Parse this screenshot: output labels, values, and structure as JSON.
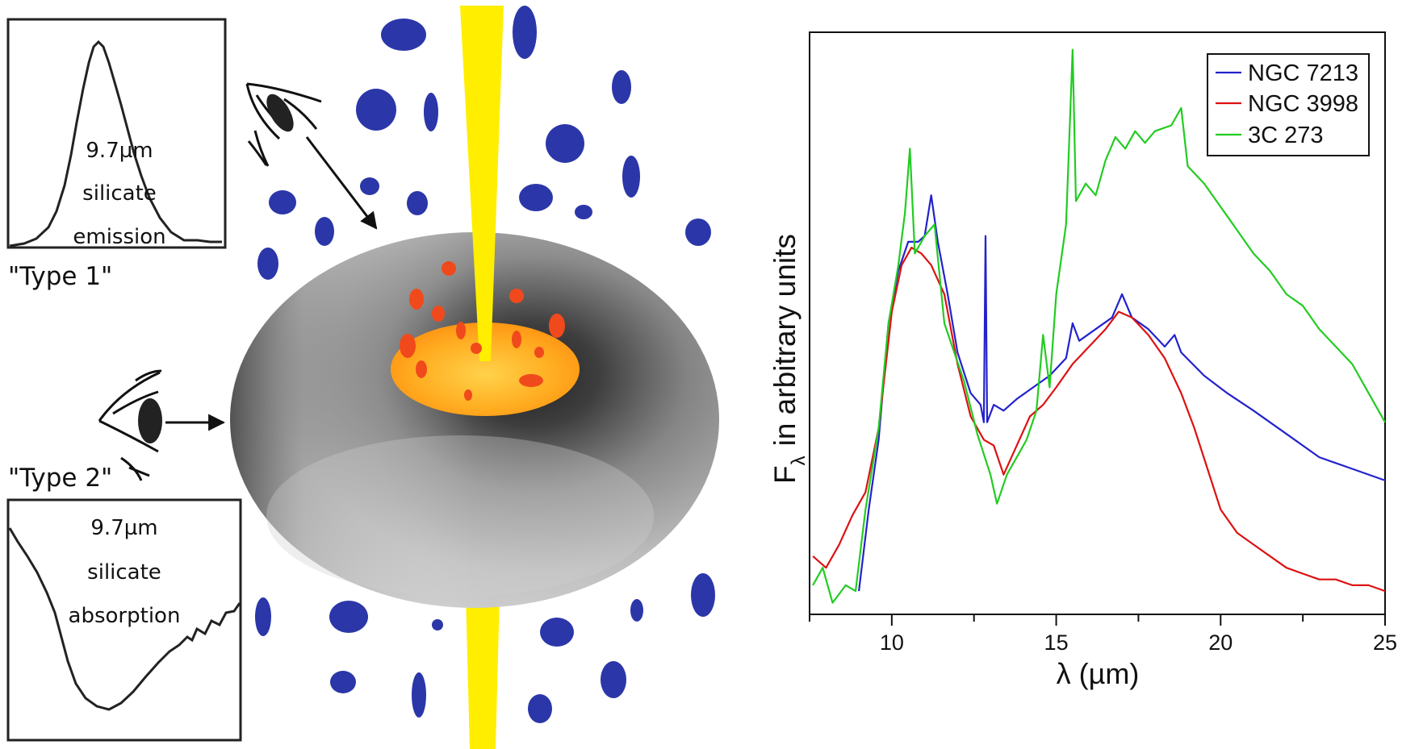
{
  "inset_type1": {
    "label_line1": "9.7µm",
    "label_line2": "silicate",
    "label_line3": "emission",
    "caption": "\"Type 1\""
  },
  "inset_type2": {
    "label_line1": "9.7µm",
    "label_line2": "silicate",
    "label_line3": "absorption",
    "caption": "\"Type 2\""
  },
  "colors": {
    "clouds": "#2b36a8",
    "jet": "#ffee00",
    "disk": "#ffa31a",
    "hot_clouds": "#f04a1c",
    "torus_dark": "#2c2c2c",
    "torus_light": "#d2d2d2"
  },
  "icons": [
    "eye-icon-top",
    "eye-icon-side",
    "arrow-icon"
  ],
  "chart_data": {
    "type": "line",
    "xlabel": "λ (µm)",
    "ylabel_main": "F",
    "ylabel_sub": "λ",
    "ylabel_rest": "in arbitrary units",
    "xlim": [
      7.5,
      25
    ],
    "ylim": [
      0,
      1
    ],
    "x_ticks": [
      10,
      15,
      20,
      25
    ],
    "x_tick_labels": [
      "10",
      "15",
      "20",
      "25"
    ],
    "legend_position": "top-right",
    "series": [
      {
        "name": "NGC 7213",
        "color": "#2222cc",
        "points": [
          [
            9.0,
            0.04
          ],
          [
            9.3,
            0.18
          ],
          [
            9.6,
            0.3
          ],
          [
            9.9,
            0.5
          ],
          [
            10.2,
            0.59
          ],
          [
            10.5,
            0.64
          ],
          [
            10.8,
            0.64
          ],
          [
            11.0,
            0.65
          ],
          [
            11.2,
            0.72
          ],
          [
            11.4,
            0.64
          ],
          [
            11.7,
            0.55
          ],
          [
            12.0,
            0.45
          ],
          [
            12.4,
            0.38
          ],
          [
            12.7,
            0.36
          ],
          [
            12.8,
            0.33
          ],
          [
            12.85,
            0.65
          ],
          [
            12.9,
            0.33
          ],
          [
            13.1,
            0.36
          ],
          [
            13.4,
            0.35
          ],
          [
            13.8,
            0.37
          ],
          [
            14.3,
            0.39
          ],
          [
            14.8,
            0.41
          ],
          [
            15.3,
            0.44
          ],
          [
            15.5,
            0.5
          ],
          [
            15.7,
            0.47
          ],
          [
            16.2,
            0.49
          ],
          [
            16.7,
            0.51
          ],
          [
            17.0,
            0.55
          ],
          [
            17.3,
            0.51
          ],
          [
            17.8,
            0.49
          ],
          [
            18.3,
            0.46
          ],
          [
            18.6,
            0.48
          ],
          [
            18.8,
            0.45
          ],
          [
            19.5,
            0.41
          ],
          [
            20.2,
            0.38
          ],
          [
            21.0,
            0.35
          ],
          [
            22.0,
            0.31
          ],
          [
            23.0,
            0.27
          ],
          [
            24.0,
            0.25
          ],
          [
            25.0,
            0.23
          ]
        ]
      },
      {
        "name": "NGC 3998",
        "color": "#dd1111",
        "points": [
          [
            7.6,
            0.1
          ],
          [
            8.0,
            0.08
          ],
          [
            8.4,
            0.12
          ],
          [
            8.8,
            0.17
          ],
          [
            9.2,
            0.21
          ],
          [
            9.6,
            0.32
          ],
          [
            10.0,
            0.52
          ],
          [
            10.3,
            0.6
          ],
          [
            10.6,
            0.63
          ],
          [
            10.9,
            0.62
          ],
          [
            11.2,
            0.6
          ],
          [
            11.6,
            0.55
          ],
          [
            12.0,
            0.43
          ],
          [
            12.4,
            0.34
          ],
          [
            12.8,
            0.3
          ],
          [
            13.1,
            0.29
          ],
          [
            13.4,
            0.24
          ],
          [
            13.8,
            0.29
          ],
          [
            14.2,
            0.34
          ],
          [
            14.6,
            0.36
          ],
          [
            15.0,
            0.39
          ],
          [
            15.5,
            0.43
          ],
          [
            16.0,
            0.46
          ],
          [
            16.5,
            0.49
          ],
          [
            16.9,
            0.52
          ],
          [
            17.3,
            0.51
          ],
          [
            17.8,
            0.48
          ],
          [
            18.3,
            0.44
          ],
          [
            18.8,
            0.38
          ],
          [
            19.2,
            0.32
          ],
          [
            19.6,
            0.25
          ],
          [
            20.0,
            0.18
          ],
          [
            20.5,
            0.14
          ],
          [
            21.0,
            0.12
          ],
          [
            21.5,
            0.1
          ],
          [
            22.0,
            0.08
          ],
          [
            22.5,
            0.07
          ],
          [
            23.0,
            0.06
          ],
          [
            23.5,
            0.06
          ],
          [
            24.0,
            0.05
          ],
          [
            24.5,
            0.05
          ],
          [
            25.0,
            0.04
          ]
        ]
      },
      {
        "name": "3C 273",
        "color": "#22cc22",
        "points": [
          [
            7.6,
            0.05
          ],
          [
            7.9,
            0.08
          ],
          [
            8.2,
            0.02
          ],
          [
            8.6,
            0.05
          ],
          [
            8.9,
            0.04
          ],
          [
            9.2,
            0.18
          ],
          [
            9.6,
            0.32
          ],
          [
            9.9,
            0.5
          ],
          [
            10.2,
            0.6
          ],
          [
            10.4,
            0.69
          ],
          [
            10.55,
            0.8
          ],
          [
            10.7,
            0.62
          ],
          [
            11.0,
            0.65
          ],
          [
            11.3,
            0.67
          ],
          [
            11.6,
            0.5
          ],
          [
            11.9,
            0.45
          ],
          [
            12.2,
            0.4
          ],
          [
            12.6,
            0.31
          ],
          [
            13.0,
            0.24
          ],
          [
            13.2,
            0.19
          ],
          [
            13.5,
            0.24
          ],
          [
            13.8,
            0.27
          ],
          [
            14.1,
            0.3
          ],
          [
            14.4,
            0.35
          ],
          [
            14.6,
            0.48
          ],
          [
            14.8,
            0.39
          ],
          [
            15.0,
            0.55
          ],
          [
            15.3,
            0.67
          ],
          [
            15.5,
            0.97
          ],
          [
            15.6,
            0.71
          ],
          [
            15.9,
            0.74
          ],
          [
            16.2,
            0.72
          ],
          [
            16.5,
            0.78
          ],
          [
            16.8,
            0.82
          ],
          [
            17.1,
            0.8
          ],
          [
            17.4,
            0.83
          ],
          [
            17.7,
            0.81
          ],
          [
            18.0,
            0.83
          ],
          [
            18.5,
            0.84
          ],
          [
            18.8,
            0.87
          ],
          [
            19.0,
            0.77
          ],
          [
            19.5,
            0.74
          ],
          [
            20.0,
            0.7
          ],
          [
            20.5,
            0.66
          ],
          [
            21.0,
            0.62
          ],
          [
            21.5,
            0.59
          ],
          [
            22.0,
            0.55
          ],
          [
            22.5,
            0.53
          ],
          [
            23.0,
            0.49
          ],
          [
            23.5,
            0.46
          ],
          [
            24.0,
            0.43
          ],
          [
            24.5,
            0.38
          ],
          [
            25.0,
            0.33
          ]
        ]
      }
    ]
  }
}
